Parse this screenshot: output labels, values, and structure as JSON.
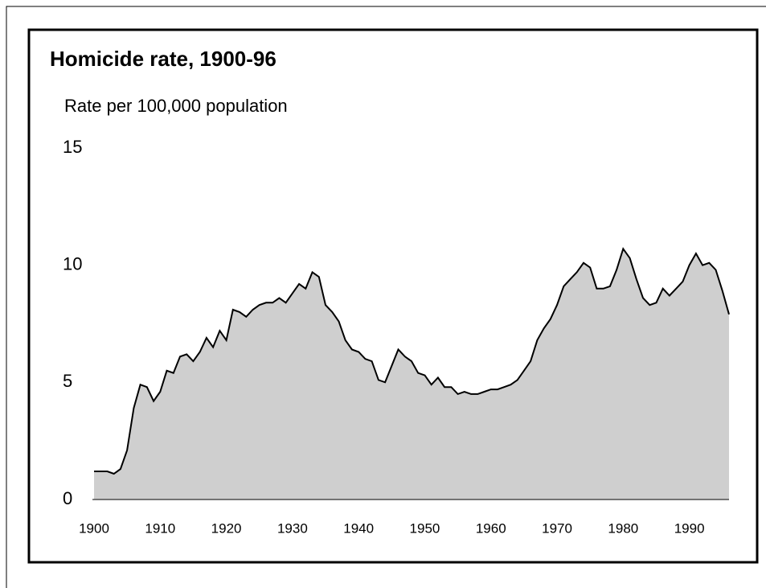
{
  "chart_data": {
    "type": "area",
    "title": "Homicide rate, 1900-96",
    "subtitle": "Rate per 100,000 population",
    "x": [
      1900,
      1901,
      1902,
      1903,
      1904,
      1905,
      1906,
      1907,
      1908,
      1909,
      1910,
      1911,
      1912,
      1913,
      1914,
      1915,
      1916,
      1917,
      1918,
      1919,
      1920,
      1921,
      1922,
      1923,
      1924,
      1925,
      1926,
      1927,
      1928,
      1929,
      1930,
      1931,
      1932,
      1933,
      1934,
      1935,
      1936,
      1937,
      1938,
      1939,
      1940,
      1941,
      1942,
      1943,
      1944,
      1945,
      1946,
      1947,
      1948,
      1949,
      1950,
      1951,
      1952,
      1953,
      1954,
      1955,
      1956,
      1957,
      1958,
      1959,
      1960,
      1961,
      1962,
      1963,
      1964,
      1965,
      1966,
      1967,
      1968,
      1969,
      1970,
      1971,
      1972,
      1973,
      1974,
      1975,
      1976,
      1977,
      1978,
      1979,
      1980,
      1981,
      1982,
      1983,
      1984,
      1985,
      1986,
      1987,
      1988,
      1989,
      1990,
      1991,
      1992,
      1993,
      1994,
      1995,
      1996
    ],
    "values": [
      1.2,
      1.2,
      1.2,
      1.1,
      1.3,
      2.1,
      3.9,
      4.9,
      4.8,
      4.2,
      4.6,
      5.5,
      5.4,
      6.1,
      6.2,
      5.9,
      6.3,
      6.9,
      6.5,
      7.2,
      6.8,
      8.1,
      8.0,
      7.8,
      8.1,
      8.3,
      8.4,
      8.4,
      8.6,
      8.4,
      8.8,
      9.2,
      9.0,
      9.7,
      9.5,
      8.3,
      8.0,
      7.6,
      6.8,
      6.4,
      6.3,
      6.0,
      5.9,
      5.1,
      5.0,
      5.7,
      6.4,
      6.1,
      5.9,
      5.4,
      5.3,
      4.9,
      5.2,
      4.8,
      4.8,
      4.5,
      4.6,
      4.5,
      4.5,
      4.6,
      4.7,
      4.7,
      4.8,
      4.9,
      5.1,
      5.5,
      5.9,
      6.8,
      7.3,
      7.7,
      8.3,
      9.1,
      9.4,
      9.7,
      10.1,
      9.9,
      9.0,
      9.0,
      9.1,
      9.8,
      10.7,
      10.3,
      9.4,
      8.6,
      8.3,
      8.4,
      9.0,
      8.7,
      9.0,
      9.3,
      10.0,
      10.5,
      10.0,
      10.1,
      9.8,
      8.9,
      7.9
    ],
    "color": "#000000",
    "fill": "#cfcfcf",
    "xlim": [
      1900,
      1996
    ],
    "xticks": [
      1900,
      1910,
      1920,
      1930,
      1940,
      1950,
      1960,
      1970,
      1980,
      1990
    ],
    "ylim": [
      0,
      15
    ],
    "yticks": [
      0,
      5,
      10,
      15
    ]
  }
}
